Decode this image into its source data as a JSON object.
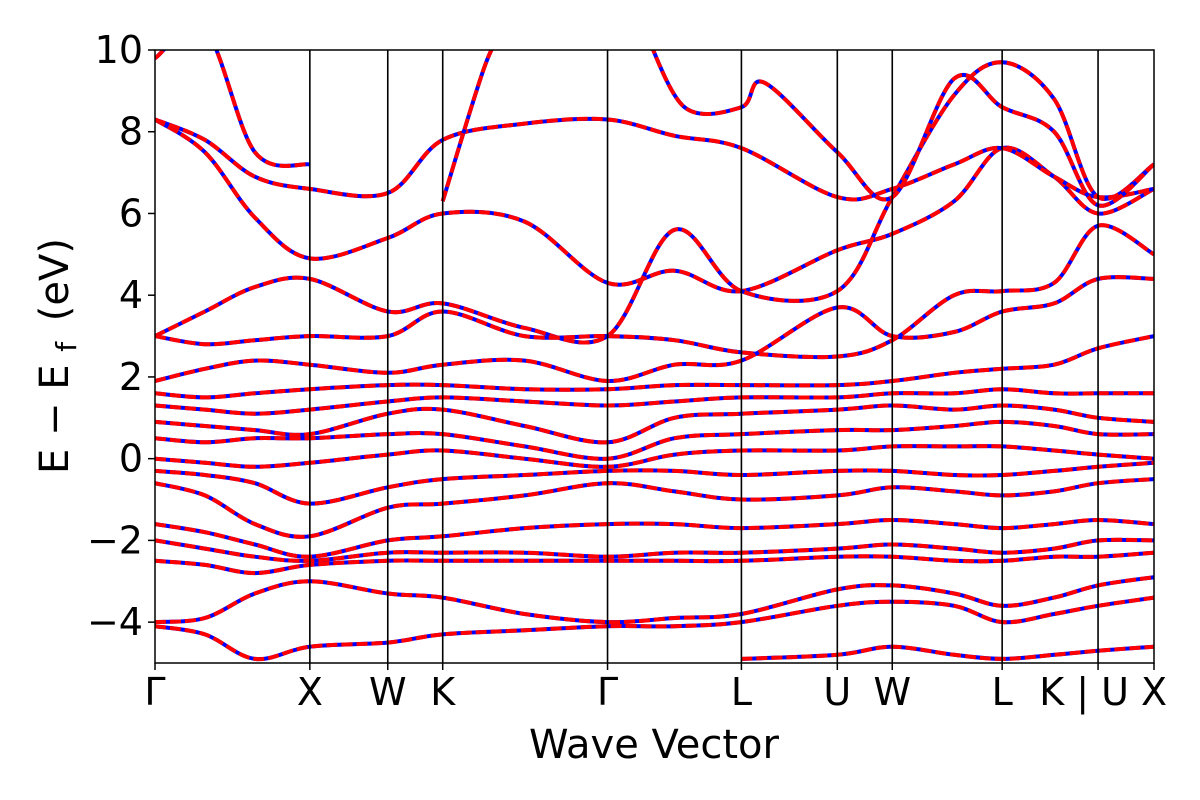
{
  "chart_data": {
    "type": "line",
    "xlabel": "Wave Vector",
    "ylabel": "E − E",
    "ylabel_sub": "f",
    "ylabel_unit": "(eV)",
    "ylim": [
      -5,
      10
    ],
    "yticks": [
      -4,
      -2,
      0,
      2,
      4,
      6,
      8,
      10
    ],
    "ytick_labels": [
      "−4",
      "−2",
      "0",
      "2",
      "4",
      "6",
      "8",
      "10"
    ],
    "xlim": [
      0,
      1
    ],
    "kpoints": [
      {
        "label": "Γ",
        "x": 0.0
      },
      {
        "label": "X",
        "x": 0.155
      },
      {
        "label": "W",
        "x": 0.233
      },
      {
        "label": "K",
        "x": 0.288
      },
      {
        "label": "Γ",
        "x": 0.453
      },
      {
        "label": "L",
        "x": 0.587
      },
      {
        "label": "U",
        "x": 0.683
      },
      {
        "label": "W",
        "x": 0.738
      },
      {
        "label": "L",
        "x": 0.848
      },
      {
        "label": "K | U",
        "x": 0.944
      },
      {
        "label": "X",
        "x": 1.0
      }
    ],
    "styles": {
      "line_color": "#ff0000",
      "dash_color": "#0000ff"
    },
    "series": [
      {
        "x": [
          0,
          0.05,
          0.1,
          0.155,
          0.233,
          0.288,
          0.37,
          0.453,
          0.52,
          0.587,
          0.683,
          0.738,
          0.8,
          0.848,
          0.9,
          0.944,
          1.0
        ],
        "y": [
          8.3,
          7.5,
          5.9,
          4.9,
          5.4,
          6.0,
          5.8,
          4.3,
          4.6,
          4.1,
          5.1,
          5.5,
          6.3,
          7.6,
          6.9,
          6.0,
          6.6
        ]
      },
      {
        "x": [
          0,
          0.05,
          0.1,
          0.155,
          0.233,
          0.288,
          0.37,
          0.453,
          0.52,
          0.587,
          0.683,
          0.738,
          0.8,
          0.848,
          0.9,
          0.944,
          1.0
        ],
        "y": [
          8.3,
          7.8,
          6.9,
          6.6,
          6.5,
          7.8,
          8.2,
          8.3,
          7.9,
          7.6,
          6.4,
          6.6,
          7.2,
          7.6,
          6.9,
          6.4,
          6.6
        ]
      },
      {
        "x": [
          0,
          0.05,
          0.1,
          0.155,
          0.233,
          0.288,
          0.37,
          0.453,
          0.52,
          0.587,
          0.683,
          0.738,
          0.8,
          0.848,
          0.9,
          0.944,
          1.0
        ],
        "y": [
          3.0,
          3.6,
          4.2,
          4.4,
          3.6,
          3.8,
          3.2,
          3.0,
          5.6,
          4.1,
          4.1,
          6.4,
          8.9,
          9.7,
          8.8,
          6.4,
          7.2
        ]
      },
      {
        "x": [
          0,
          0.05,
          0.1,
          0.155,
          0.233,
          0.288,
          0.37,
          0.453,
          0.52,
          0.587,
          0.683,
          0.738,
          0.8,
          0.848,
          0.9,
          0.944,
          1.0
        ],
        "y": [
          3.0,
          2.8,
          2.9,
          3.0,
          3.0,
          3.6,
          3.0,
          3.0,
          2.9,
          2.6,
          2.5,
          2.9,
          4.0,
          4.1,
          4.3,
          5.7,
          5.0
        ]
      },
      {
        "x": [
          0,
          0.05,
          0.1,
          0.155,
          0.233,
          0.288,
          0.37,
          0.453,
          0.52,
          0.587,
          0.683,
          0.738,
          0.8,
          0.848,
          0.9,
          0.944,
          1.0
        ],
        "y": [
          1.9,
          2.2,
          2.4,
          2.3,
          2.1,
          2.3,
          2.4,
          1.9,
          2.3,
          2.4,
          3.7,
          3.0,
          3.1,
          3.6,
          3.8,
          4.4,
          4.4
        ]
      },
      {
        "x": [
          0,
          0.05,
          0.1,
          0.155,
          0.233,
          0.288,
          0.37,
          0.453,
          0.52,
          0.587,
          0.683,
          0.738,
          0.8,
          0.848,
          0.9,
          0.944,
          1.0
        ],
        "y": [
          1.6,
          1.5,
          1.6,
          1.7,
          1.8,
          1.8,
          1.7,
          1.7,
          1.8,
          1.8,
          1.8,
          1.9,
          2.1,
          2.2,
          2.3,
          2.7,
          3.0
        ]
      },
      {
        "x": [
          0,
          0.05,
          0.1,
          0.155,
          0.233,
          0.288,
          0.37,
          0.453,
          0.52,
          0.587,
          0.683,
          0.738,
          0.8,
          0.848,
          0.9,
          0.944,
          1.0
        ],
        "y": [
          1.3,
          1.2,
          1.1,
          1.2,
          1.4,
          1.5,
          1.4,
          1.3,
          1.4,
          1.5,
          1.5,
          1.6,
          1.6,
          1.7,
          1.6,
          1.6,
          1.6
        ]
      },
      {
        "x": [
          0,
          0.05,
          0.1,
          0.155,
          0.233,
          0.288,
          0.37,
          0.453,
          0.52,
          0.587,
          0.683,
          0.738,
          0.8,
          0.848,
          0.9,
          0.944,
          1.0
        ],
        "y": [
          0.9,
          0.8,
          0.7,
          0.6,
          1.1,
          1.2,
          0.8,
          0.4,
          1.0,
          1.1,
          1.2,
          1.3,
          1.2,
          1.3,
          1.2,
          1.0,
          0.9
        ]
      },
      {
        "x": [
          0,
          0.05,
          0.1,
          0.155,
          0.233,
          0.288,
          0.37,
          0.453,
          0.52,
          0.587,
          0.683,
          0.738,
          0.8,
          0.848,
          0.9,
          0.944,
          1.0
        ],
        "y": [
          0.5,
          0.4,
          0.5,
          0.5,
          0.6,
          0.6,
          0.3,
          0.0,
          0.5,
          0.6,
          0.7,
          0.7,
          0.8,
          0.9,
          0.8,
          0.6,
          0.6
        ]
      },
      {
        "x": [
          0,
          0.05,
          0.1,
          0.155,
          0.233,
          0.288,
          0.37,
          0.453,
          0.52,
          0.587,
          0.683,
          0.738,
          0.8,
          0.848,
          0.9,
          0.944,
          1.0
        ],
        "y": [
          0.0,
          -0.1,
          -0.2,
          -0.1,
          0.1,
          0.2,
          0.0,
          -0.2,
          0.1,
          0.2,
          0.2,
          0.3,
          0.3,
          0.3,
          0.2,
          0.1,
          0.0
        ]
      },
      {
        "x": [
          0,
          0.05,
          0.1,
          0.155,
          0.233,
          0.288,
          0.37,
          0.453,
          0.52,
          0.587,
          0.683,
          0.738,
          0.8,
          0.848,
          0.9,
          0.944,
          1.0
        ],
        "y": [
          -0.3,
          -0.4,
          -0.6,
          -1.1,
          -0.7,
          -0.5,
          -0.4,
          -0.3,
          -0.3,
          -0.4,
          -0.3,
          -0.3,
          -0.4,
          -0.4,
          -0.3,
          -0.2,
          -0.1
        ]
      },
      {
        "x": [
          0,
          0.05,
          0.1,
          0.155,
          0.233,
          0.288,
          0.37,
          0.453,
          0.52,
          0.587,
          0.683,
          0.738,
          0.8,
          0.848,
          0.9,
          0.944,
          1.0
        ],
        "y": [
          -0.6,
          -0.9,
          -1.6,
          -1.9,
          -1.2,
          -1.1,
          -0.9,
          -0.6,
          -0.8,
          -1.0,
          -0.9,
          -0.7,
          -0.8,
          -0.9,
          -0.8,
          -0.6,
          -0.5
        ]
      },
      {
        "x": [
          0,
          0.05,
          0.1,
          0.155,
          0.233,
          0.288,
          0.37,
          0.453,
          0.52,
          0.587,
          0.683,
          0.738,
          0.8,
          0.848,
          0.9,
          0.944,
          1.0
        ],
        "y": [
          -1.6,
          -1.8,
          -2.1,
          -2.4,
          -2.0,
          -1.9,
          -1.7,
          -1.6,
          -1.6,
          -1.7,
          -1.6,
          -1.5,
          -1.6,
          -1.7,
          -1.6,
          -1.5,
          -1.6
        ]
      },
      {
        "x": [
          0,
          0.05,
          0.1,
          0.155,
          0.233,
          0.288,
          0.37,
          0.453,
          0.52,
          0.587,
          0.683,
          0.738,
          0.8,
          0.848,
          0.9,
          0.944,
          1.0
        ],
        "y": [
          -2.0,
          -2.2,
          -2.4,
          -2.5,
          -2.3,
          -2.3,
          -2.3,
          -2.4,
          -2.3,
          -2.3,
          -2.2,
          -2.1,
          -2.2,
          -2.3,
          -2.2,
          -2.0,
          -2.0
        ]
      },
      {
        "x": [
          0,
          0.05,
          0.1,
          0.155,
          0.233,
          0.288,
          0.37,
          0.453,
          0.52,
          0.587,
          0.683,
          0.738,
          0.8,
          0.848,
          0.9,
          0.944,
          1.0
        ],
        "y": [
          -2.5,
          -2.6,
          -2.8,
          -2.6,
          -2.5,
          -2.5,
          -2.5,
          -2.5,
          -2.5,
          -2.5,
          -2.4,
          -2.4,
          -2.5,
          -2.5,
          -2.4,
          -2.4,
          -2.3
        ]
      },
      {
        "x": [
          0,
          0.05,
          0.1,
          0.155,
          0.233,
          0.288,
          0.37,
          0.453,
          0.52,
          0.587,
          0.683,
          0.738,
          0.8,
          0.848,
          0.9,
          0.944,
          1.0
        ],
        "y": [
          -4.0,
          -3.9,
          -3.3,
          -3.0,
          -3.3,
          -3.4,
          -3.8,
          -4.0,
          -3.9,
          -3.8,
          -3.2,
          -3.1,
          -3.3,
          -3.6,
          -3.4,
          -3.1,
          -2.9
        ]
      },
      {
        "x": [
          0,
          0.05,
          0.1,
          0.155,
          0.233,
          0.288,
          0.37,
          0.453,
          0.52,
          0.587,
          0.683,
          0.738,
          0.8,
          0.848,
          0.9,
          0.944,
          1.0
        ],
        "y": [
          -4.1,
          -4.3,
          -4.9,
          -4.6,
          -4.5,
          -4.3,
          -4.2,
          -4.1,
          -4.1,
          -4.0,
          -3.6,
          -3.5,
          -3.6,
          -4.0,
          -3.8,
          -3.6,
          -3.4
        ]
      },
      {
        "x": [
          0.0,
          0.05,
          0.1,
          0.155
        ],
        "y": [
          9.8,
          10.5,
          7.5,
          7.2
        ]
      },
      {
        "x": [
          0.288,
          0.33,
          0.35
        ],
        "y": [
          6.3,
          9.6,
          10.5
        ]
      },
      {
        "x": [
          0.49,
          0.53,
          0.587,
          0.61,
          0.683,
          0.738,
          0.8,
          0.848,
          0.9,
          0.944,
          1.0
        ],
        "y": [
          10.5,
          8.6,
          8.6,
          9.2,
          7.5,
          6.4,
          9.3,
          8.6,
          8.0,
          6.2,
          7.2
        ]
      },
      {
        "x": [
          0.587,
          0.683,
          0.738,
          0.8,
          0.848,
          0.9,
          0.944,
          1.0
        ],
        "y": [
          -4.9,
          -4.8,
          -4.6,
          -4.8,
          -4.9,
          -4.8,
          -4.7,
          -4.6
        ]
      }
    ]
  }
}
